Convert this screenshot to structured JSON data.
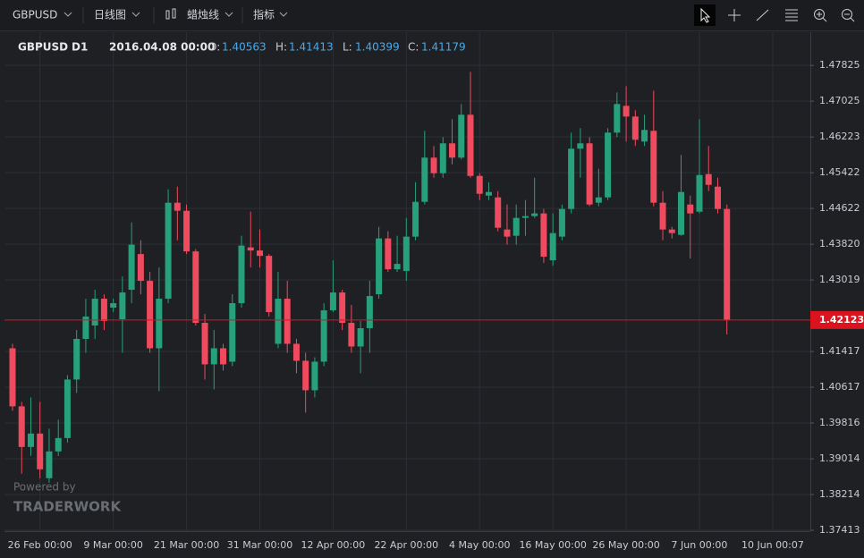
{
  "toolbar": {
    "symbol": "GBPUSD",
    "period": "日线图",
    "style": "蜡烛线",
    "indicators": "指标"
  },
  "info": {
    "symbol": "GBPUSD",
    "timeframe": "D1",
    "time": "2016.04.08 00:00",
    "o_label": "O:",
    "o": "1.40563",
    "h_label": "H:",
    "h": "1.41413",
    "l_label": "L:",
    "l": "1.40399",
    "c_label": "C:",
    "c": "1.41179"
  },
  "watermark": {
    "line1": "Powered by",
    "line2": "TRADERWORK"
  },
  "chart_data": {
    "type": "candlestick",
    "up_color": "#26a17b",
    "down_color": "#ef4a5e",
    "grid": true,
    "categories": [
      null,
      null,
      null,
      "26 Feb 00:00",
      null,
      null,
      null,
      null,
      null,
      null,
      null,
      "9 Mar 00:00",
      null,
      null,
      null,
      null,
      null,
      null,
      null,
      "21 Mar 00:00",
      null,
      null,
      null,
      null,
      null,
      null,
      null,
      "31 Mar 00:00",
      null,
      null,
      null,
      null,
      null,
      null,
      null,
      "12 Apr 00:00",
      null,
      null,
      null,
      null,
      null,
      null,
      null,
      "22 Apr 00:00",
      null,
      null,
      null,
      null,
      null,
      null,
      null,
      "4 May 00:00",
      null,
      null,
      null,
      null,
      null,
      null,
      null,
      "16 May 00:00",
      null,
      null,
      null,
      null,
      null,
      null,
      null,
      "26 May 00:00",
      null,
      null,
      null,
      null,
      null,
      null,
      null,
      "7 Jun 00:00",
      null,
      null,
      null,
      null,
      null,
      null,
      null,
      "10 Jun 00:07"
    ],
    "open": [
      1.4149,
      1.4019,
      1.3928,
      1.3958,
      1.3858,
      1.3918,
      1.3948,
      1.4079,
      1.417,
      1.42,
      1.426,
      1.424,
      1.4214,
      1.428,
      1.436,
      1.43,
      1.4149,
      1.426,
      1.4475,
      1.4457,
      1.4366,
      1.4206,
      1.4113,
      1.4149,
      1.4119,
      1.425,
      1.4375,
      1.4368,
      1.4356,
      1.4159,
      1.426,
      1.4159,
      1.4121,
      1.4055,
      1.4119,
      1.4234,
      1.4274,
      1.4206,
      1.4153,
      1.4194,
      1.427,
      1.4395,
      1.4326,
      1.4322,
      1.4399,
      1.4477,
      1.4576,
      1.4541,
      1.4608,
      1.4576,
      1.4672,
      1.4535,
      1.4491,
      1.4487,
      1.4415,
      1.4401,
      1.4441,
      1.4445,
      1.4451,
      1.4346,
      1.4399,
      1.4461,
      1.4596,
      1.4608,
      1.4475,
      1.4487,
      1.4632,
      1.4692,
      1.4668,
      1.4612,
      1.4636,
      1.4475,
      1.4415,
      1.4403,
      1.4471,
      1.4455,
      1.4539,
      1.4511,
      1.4461,
      null,
      null,
      null,
      null,
      null
    ],
    "high": [
      1.4159,
      1.4029,
      1.4039,
      1.4029,
      1.3969,
      1.3989,
      1.4089,
      1.419,
      1.426,
      1.428,
      1.427,
      1.426,
      1.431,
      1.4431,
      1.4391,
      1.432,
      1.433,
      1.4505,
      1.4511,
      1.4471,
      1.4371,
      1.4226,
      1.419,
      1.4159,
      1.427,
      1.4401,
      1.4455,
      1.4415,
      1.436,
      1.432,
      1.43,
      1.417,
      1.4139,
      1.4129,
      1.425,
      1.4346,
      1.428,
      1.4246,
      1.421,
      1.43,
      1.4421,
      1.4411,
      1.4401,
      1.4441,
      1.4521,
      1.4636,
      1.4602,
      1.4622,
      1.4662,
      1.4696,
      1.4768,
      1.4541,
      1.4521,
      1.4501,
      1.4471,
      1.4471,
      1.4481,
      1.4531,
      1.4461,
      1.4451,
      1.4471,
      1.4632,
      1.4642,
      1.4622,
      1.4551,
      1.4642,
      1.4722,
      1.4736,
      1.4682,
      1.4672,
      1.4726,
      1.4501,
      1.4421,
      1.4582,
      1.4491,
      1.4662,
      1.4602,
      1.4531,
      1.4471,
      null,
      null,
      null,
      null,
      null
    ],
    "low": [
      1.4009,
      1.3868,
      1.3908,
      1.3858,
      1.3848,
      1.3908,
      1.3938,
      1.4049,
      1.4139,
      1.417,
      1.419,
      1.423,
      1.4139,
      1.425,
      1.427,
      1.4139,
      1.4053,
      1.425,
      1.4391,
      1.436,
      1.42,
      1.4079,
      1.4057,
      1.4099,
      1.4109,
      1.424,
      1.433,
      1.433,
      1.422,
      1.4149,
      1.4139,
      1.4093,
      1.4005,
      1.4039,
      1.4109,
      1.423,
      1.419,
      1.4139,
      1.4093,
      1.4139,
      1.426,
      1.432,
      1.432,
      1.43,
      1.4391,
      1.4471,
      1.4531,
      1.4531,
      1.4561,
      1.4572,
      1.4531,
      1.4481,
      1.4481,
      1.4411,
      1.4381,
      1.4381,
      1.4401,
      1.4441,
      1.434,
      1.4334,
      1.4391,
      1.4451,
      1.4531,
      1.4467,
      1.4467,
      1.4481,
      1.4622,
      1.4612,
      1.4602,
      1.4602,
      1.4467,
      1.4391,
      1.4395,
      1.4401,
      1.435,
      1.4451,
      1.4501,
      1.4451,
      1.418,
      null,
      null,
      null,
      null,
      null
    ],
    "close": [
      1.4019,
      1.3928,
      1.3958,
      1.3878,
      1.3918,
      1.3948,
      1.4079,
      1.417,
      1.422,
      1.426,
      1.421,
      1.425,
      1.4274,
      1.4381,
      1.43,
      1.4149,
      1.426,
      1.4475,
      1.4457,
      1.4366,
      1.4206,
      1.4113,
      1.4149,
      1.4113,
      1.425,
      1.4379,
      1.4368,
      1.4356,
      1.423,
      1.426,
      1.4159,
      1.4121,
      1.4055,
      1.4119,
      1.4234,
      1.4274,
      1.4206,
      1.4153,
      1.4194,
      1.4266,
      1.4395,
      1.4326,
      1.4338,
      1.4399,
      1.4477,
      1.4576,
      1.4541,
      1.4608,
      1.4576,
      1.4672,
      1.4535,
      1.4495,
      1.4499,
      1.4419,
      1.4399,
      1.4441,
      1.4445,
      1.4451,
      1.4354,
      1.4407,
      1.4461,
      1.4596,
      1.4608,
      1.4471,
      1.4487,
      1.4632,
      1.4696,
      1.4668,
      1.4616,
      1.4638,
      1.4475,
      1.4415,
      1.4407,
      1.4499,
      1.4451,
      1.4537,
      1.4515,
      1.4461,
      1.42123,
      null,
      null,
      null,
      null,
      null
    ],
    "last_price": 1.42123,
    "last_color": "#d9141e",
    "ylim": [
      1.37394,
      1.48569
    ],
    "yticks": [
      1.37413,
      1.38214,
      1.39014,
      1.39816,
      1.40617,
      1.41417,
      1.43019,
      {
        "value": 1.4382,
        "label": "1.43820"
      },
      1.44622,
      1.45422,
      1.46223,
      1.47025,
      1.47825
    ]
  }
}
